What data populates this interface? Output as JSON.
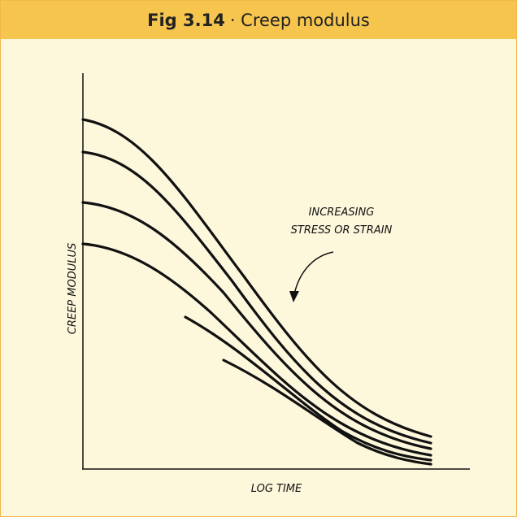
{
  "header": {
    "figure": "Fig 3.14",
    "title": "· Creep modulus"
  },
  "axes": {
    "y_label": "CREEP MODULUS",
    "x_label": "LOG TIME"
  },
  "annotation": {
    "lines": [
      "INCREASING",
      "STRESS OR STRAIN"
    ]
  }
}
